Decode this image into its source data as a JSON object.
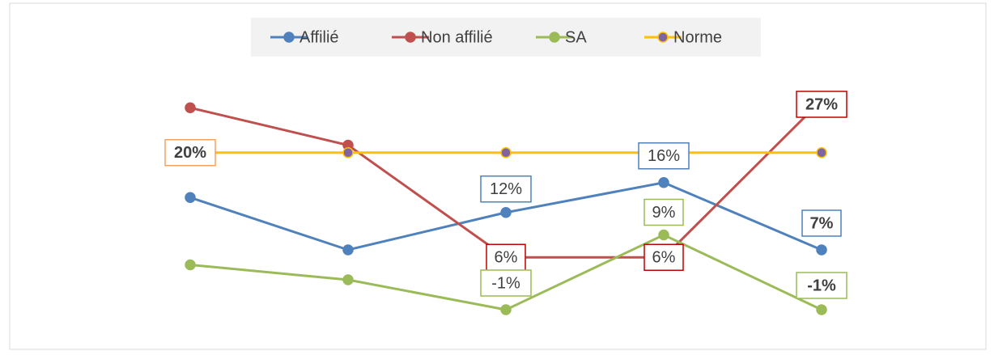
{
  "chart_data": {
    "type": "line",
    "categories": [
      null,
      null,
      null,
      null,
      null
    ],
    "series": [
      {
        "name": "Affilié",
        "color": "#4f81bd",
        "values": [
          14,
          7,
          12,
          16,
          7
        ],
        "value_labels": [
          null,
          null,
          "12%",
          "16%",
          "7%"
        ]
      },
      {
        "name": "Non affilié",
        "color": "#c0504d",
        "values": [
          26,
          21,
          6,
          6,
          27
        ],
        "value_labels": [
          null,
          null,
          "6%",
          "6%",
          "27%"
        ]
      },
      {
        "name": "SA",
        "color": "#9bbb59",
        "values": [
          5,
          3,
          -1,
          9,
          -1
        ],
        "value_labels": [
          null,
          null,
          "-1%",
          "9%",
          "-1%"
        ]
      },
      {
        "name": "Norme",
        "color": "#ffc000",
        "marker_color": "#8064a2",
        "values": [
          20,
          20,
          20,
          20,
          20
        ],
        "value_labels": [
          "20%",
          null,
          null,
          null,
          null
        ]
      }
    ],
    "legend": "top"
  }
}
